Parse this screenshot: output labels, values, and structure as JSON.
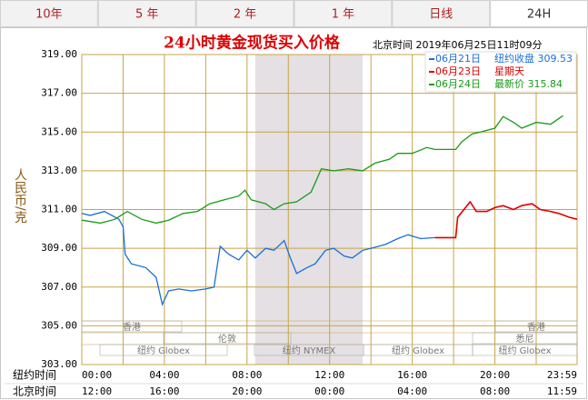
{
  "tabs": [
    "10年",
    "5 年",
    "2 年",
    "1 年",
    "日线",
    "24H"
  ],
  "chart_data": {
    "type": "line",
    "title": "24小时黄金现货买入价格",
    "subtitle": "北京时间  2019年06月25日11时09分",
    "y_label": "人民币/克",
    "series": [
      {
        "name": "06月21日",
        "note": "纽约收盘 309.53",
        "color": "#1a6fd8",
        "x": [
          0,
          0.4,
          1.1,
          1.8,
          2,
          2.1,
          2.4,
          3.1,
          3.6,
          3.9,
          4.2,
          4.7,
          5.3,
          6,
          6.4,
          6.7,
          7.1,
          7.6,
          8,
          8.4,
          8.9,
          9.3,
          9.8,
          10.1,
          10.4,
          10.9,
          11.3,
          11.8,
          12.2,
          12.7,
          13.1,
          13.6,
          14,
          14.7,
          15.3,
          15.8,
          16.4,
          17.1
        ],
        "values": [
          310.8,
          310.7,
          310.9,
          310.5,
          310.1,
          308.7,
          308.2,
          308.0,
          307.5,
          306.1,
          306.8,
          306.9,
          306.8,
          306.9,
          307.0,
          309.1,
          308.7,
          308.4,
          308.9,
          308.5,
          309.0,
          308.9,
          309.4,
          308.5,
          307.7,
          308.0,
          308.2,
          308.9,
          309.0,
          308.6,
          308.5,
          308.9,
          309.0,
          309.2,
          309.5,
          309.7,
          309.5,
          309.55
        ]
      },
      {
        "name": "06月23日",
        "note": "星期天",
        "color": "#dd0000",
        "x": [
          17.1,
          18.1,
          18.2,
          18.8,
          19.1,
          19.6,
          20,
          20.4,
          20.9,
          21.3,
          21.8,
          22.2,
          22.7,
          23.1,
          23.6,
          23.98
        ],
        "values": [
          309.55,
          309.55,
          310.6,
          311.4,
          310.9,
          310.9,
          311.1,
          311.2,
          311.0,
          311.2,
          311.3,
          311.0,
          310.9,
          310.8,
          310.6,
          310.5
        ]
      },
      {
        "name": "06月24日",
        "note": "最新价 315.84",
        "color": "#1a9a1a",
        "x": [
          0,
          0.9,
          1.6,
          2.2,
          2.9,
          3.6,
          4.2,
          4.9,
          5.6,
          6.2,
          6.9,
          7.6,
          7.9,
          8.2,
          8.9,
          9.3,
          9.8,
          10.4,
          11.1,
          11.6,
          12.2,
          12.9,
          13.6,
          14.2,
          14.9,
          15.3,
          16,
          16.7,
          17.1,
          18.1,
          18.4,
          18.9,
          19.3,
          20,
          20.4,
          20.9,
          21.3,
          22,
          22.7,
          23.1,
          23.3
        ],
        "values": [
          310.45,
          310.3,
          310.5,
          310.9,
          310.5,
          310.3,
          310.45,
          310.8,
          310.9,
          311.3,
          311.5,
          311.7,
          312.0,
          311.5,
          311.3,
          311.0,
          311.3,
          311.4,
          311.9,
          313.1,
          313.0,
          313.1,
          313.0,
          313.4,
          313.6,
          313.9,
          313.9,
          314.2,
          314.1,
          314.1,
          314.5,
          314.9,
          315.0,
          315.2,
          315.8,
          315.5,
          315.2,
          315.5,
          315.4,
          315.7,
          315.84
        ]
      }
    ],
    "xlim": [
      0,
      23.98
    ],
    "ylim": [
      303,
      319
    ],
    "yticks": [
      {
        "value": 303,
        "label": "303.00"
      },
      {
        "value": 305,
        "label": "305.00"
      },
      {
        "value": 307,
        "label": "307.00"
      },
      {
        "value": 309,
        "label": "309.00"
      },
      {
        "value": 311,
        "label": "311.00"
      },
      {
        "value": 313,
        "label": "313.00"
      },
      {
        "value": 315,
        "label": "315.00"
      },
      {
        "value": 317,
        "label": "317.00"
      },
      {
        "value": 319,
        "label": "319.00"
      }
    ],
    "x_row_label": "纽约时间",
    "xticks": [
      {
        "value": 0,
        "label": "00:00"
      },
      {
        "value": 4,
        "label": "04:00"
      },
      {
        "value": 8,
        "label": "08:00"
      },
      {
        "value": 12,
        "label": "12:00"
      },
      {
        "value": 16,
        "label": "16:00"
      },
      {
        "value": 20,
        "label": "20:00"
      },
      {
        "value": 23.98,
        "label": "23:59"
      }
    ],
    "x2_row_label": "北京时间",
    "x2ticks": [
      {
        "value": 0,
        "label": "12:00"
      },
      {
        "value": 4,
        "label": "16:00"
      },
      {
        "value": 8,
        "label": "20:00"
      },
      {
        "value": 12,
        "label": "00:00"
      },
      {
        "value": 16,
        "label": "04:00"
      },
      {
        "value": 20,
        "label": "08:00"
      },
      {
        "value": 23.98,
        "label": "11:59"
      }
    ],
    "shaded_range": [
      8.4,
      13.6
    ],
    "markets": [
      "香港",
      "香港",
      "伦敦",
      "悉尼",
      "纽约 Globex",
      "纽约 NYMEX",
      "纽约 Globex",
      "纽约 Globex"
    ],
    "grid": true
  }
}
